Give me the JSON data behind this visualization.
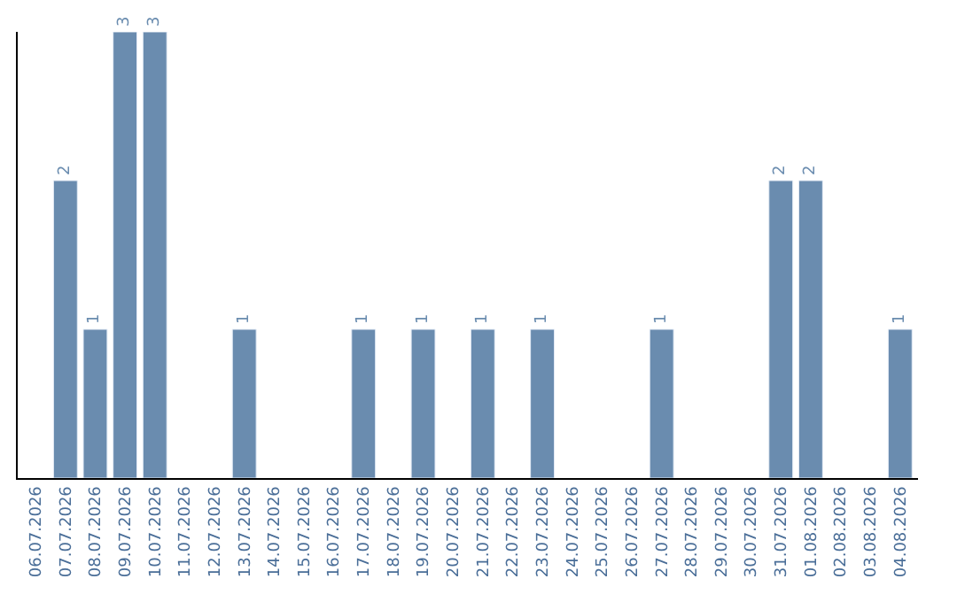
{
  "chart_data": {
    "type": "bar",
    "categories": [
      "06.07.2026",
      "07.07.2026",
      "08.07.2026",
      "09.07.2026",
      "10.07.2026",
      "11.07.2026",
      "12.07.2026",
      "13.07.2026",
      "14.07.2026",
      "15.07.2026",
      "16.07.2026",
      "17.07.2026",
      "18.07.2026",
      "19.07.2026",
      "20.07.2026",
      "21.07.2026",
      "22.07.2026",
      "23.07.2026",
      "24.07.2026",
      "25.07.2026",
      "26.07.2026",
      "27.07.2026",
      "28.07.2026",
      "29.07.2026",
      "30.07.2026",
      "31.07.2026",
      "01.08.2026",
      "02.08.2026",
      "03.08.2026",
      "04.08.2026"
    ],
    "values": [
      null,
      2,
      1,
      3,
      3,
      null,
      null,
      1,
      null,
      null,
      null,
      1,
      null,
      1,
      null,
      1,
      null,
      1,
      null,
      null,
      null,
      1,
      null,
      null,
      null,
      2,
      2,
      null,
      null,
      1
    ],
    "value_labels": [
      null,
      "2",
      "1",
      "3",
      "3",
      null,
      null,
      "1",
      null,
      null,
      null,
      "1",
      null,
      "1",
      null,
      "1",
      null,
      "1",
      null,
      null,
      null,
      "1",
      null,
      null,
      null,
      "2",
      "2",
      null,
      null,
      "1"
    ],
    "color": "#6a8caf",
    "ylim": [
      0,
      3
    ],
    "tick_labels": "x",
    "legend": false
  }
}
